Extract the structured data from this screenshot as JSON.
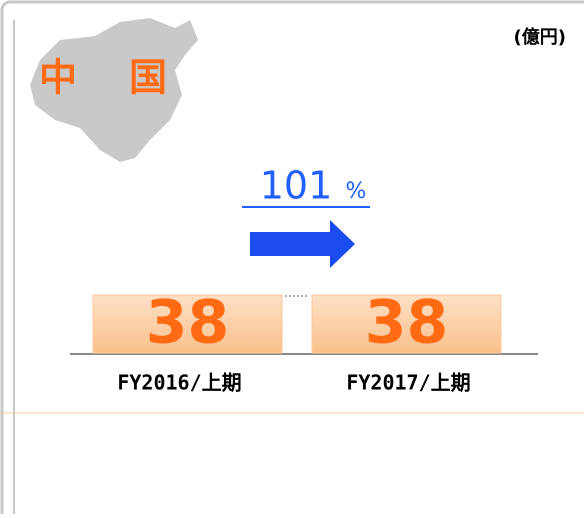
{
  "chart_data": {
    "type": "bar",
    "region": "中国",
    "unit": "(億円)",
    "growth": "101",
    "growth_unit": "%",
    "categories": [
      "FY2016/上期",
      "FY2017/上期"
    ],
    "values": [
      38,
      38
    ],
    "color": "#fcc99b",
    "label_color": "#ff6a13"
  }
}
